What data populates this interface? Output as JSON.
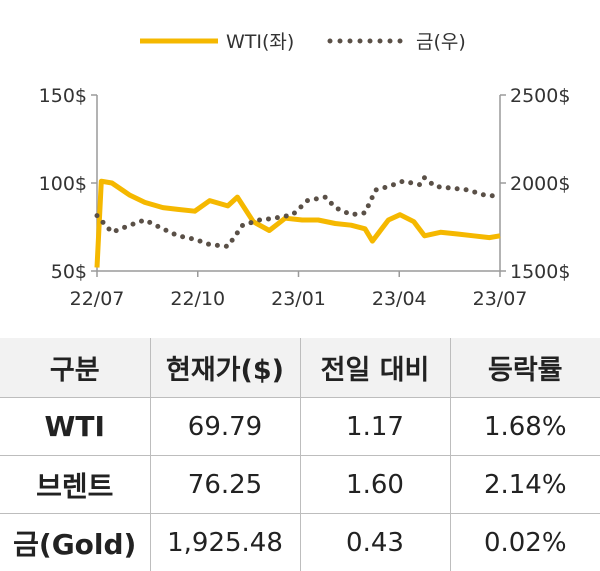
{
  "chart_data": {
    "type": "line",
    "series": [
      {
        "name": "WTI(좌)",
        "axis": "left",
        "color": "#f5b800",
        "style": "solid",
        "x": [
          "2022-07-01",
          "2022-07-05",
          "2022-07-15",
          "2022-08-01",
          "2022-08-15",
          "2022-09-01",
          "2022-09-15",
          "2022-10-01",
          "2022-10-15",
          "2022-11-01",
          "2022-11-10",
          "2022-11-25",
          "2022-12-10",
          "2022-12-25",
          "2023-01-10",
          "2023-01-25",
          "2023-02-10",
          "2023-02-25",
          "2023-03-10",
          "2023-03-17",
          "2023-04-01",
          "2023-04-12",
          "2023-04-25",
          "2023-05-05",
          "2023-05-20",
          "2023-06-05",
          "2023-06-20",
          "2023-07-05",
          "2023-07-15"
        ],
        "values": [
          52,
          101,
          100,
          93,
          89,
          86,
          85,
          84,
          90,
          87,
          92,
          78,
          73,
          80,
          79,
          79,
          77,
          76,
          74,
          67,
          79,
          82,
          78,
          70,
          72,
          71,
          70,
          69,
          70
        ]
      },
      {
        "name": "금(우)",
        "axis": "right",
        "color": "#5a5047",
        "style": "dotted",
        "x": [
          "2022-07-01",
          "2022-07-15",
          "2022-08-01",
          "2022-08-15",
          "2022-09-01",
          "2022-09-15",
          "2022-10-01",
          "2022-10-15",
          "2022-11-01",
          "2022-11-15",
          "2022-12-01",
          "2022-12-15",
          "2023-01-01",
          "2023-01-15",
          "2023-02-01",
          "2023-02-10",
          "2023-02-25",
          "2023-03-10",
          "2023-03-20",
          "2023-04-01",
          "2023-04-15",
          "2023-05-01",
          "2023-05-05",
          "2023-05-15",
          "2023-06-01",
          "2023-06-15",
          "2023-07-01",
          "2023-07-15"
        ],
        "values": [
          1815,
          1720,
          1760,
          1790,
          1740,
          1700,
          1680,
          1650,
          1640,
          1760,
          1790,
          1800,
          1820,
          1900,
          1920,
          1860,
          1820,
          1830,
          1960,
          1980,
          2010,
          1990,
          2030,
          1980,
          1970,
          1960,
          1930,
          1925
        ]
      }
    ],
    "y_left": {
      "min": 50,
      "max": 150,
      "ticks": [
        "50$",
        "100$",
        "150$"
      ]
    },
    "y_right": {
      "min": 1500,
      "max": 2500,
      "ticks": [
        "1500$",
        "2000$",
        "2500$"
      ]
    },
    "x_ticks": [
      "22/07",
      "22/10",
      "23/01",
      "23/04",
      "23/07"
    ],
    "x_range": [
      "2022-07-01",
      "2023-07-15"
    ],
    "legend_position": "top",
    "grid": false
  },
  "table": {
    "headers": [
      "구분",
      "현재가($)",
      "전일 대비",
      "등락률"
    ],
    "rows": [
      [
        "WTI",
        "69.79",
        "1.17",
        "1.68%"
      ],
      [
        "브렌트",
        "76.25",
        "1.60",
        "2.14%"
      ],
      [
        "금(Gold)",
        "1,925.48",
        "0.43",
        "0.02%"
      ]
    ]
  }
}
